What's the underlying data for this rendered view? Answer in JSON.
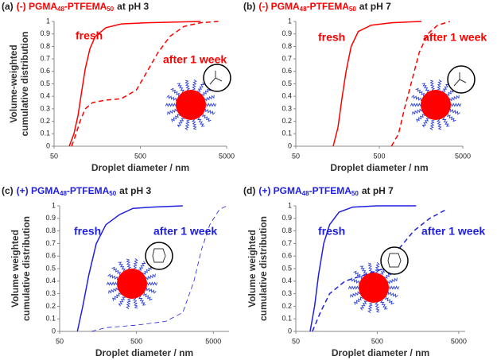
{
  "chart_data": [
    {
      "type": "line",
      "title": [
        "(a)",
        "(-) PGMA",
        "48",
        "-PTFEMA",
        "50",
        "at pH 3"
      ],
      "title_color": "#ff0000",
      "x_scale": "log",
      "xlim": [
        50,
        5000
      ],
      "xticks": [
        50,
        500,
        5000
      ],
      "ylim": [
        0,
        1
      ],
      "yticks": [
        0,
        0.1,
        0.2,
        0.3,
        0.4,
        0.5,
        0.6,
        0.7,
        0.8,
        0.9,
        1
      ],
      "xlabel": "Droplet diameter / nm",
      "ylabel": [
        "Volume-weighted",
        "cumulative distribution"
      ],
      "series": [
        {
          "name": "fresh",
          "color": "#ff0000",
          "dashed": false,
          "line_width": 1.5,
          "x": [
            75,
            85,
            95,
            105,
            115,
            130,
            150,
            200,
            300,
            600,
            2500
          ],
          "values": [
            0,
            0.1,
            0.25,
            0.45,
            0.62,
            0.78,
            0.88,
            0.95,
            0.98,
            0.99,
            1
          ]
        },
        {
          "name": "after 1 week",
          "color": "#ff0000",
          "dashed": true,
          "line_width": 1.5,
          "x": [
            80,
            90,
            100,
            115,
            140,
            200,
            300,
            450,
            600,
            800,
            1100,
            1600,
            2500,
            4000
          ],
          "values": [
            0,
            0.1,
            0.2,
            0.3,
            0.35,
            0.37,
            0.38,
            0.45,
            0.6,
            0.75,
            0.88,
            0.96,
            0.99,
            1
          ]
        }
      ]
    },
    {
      "type": "line",
      "title": [
        "(b)",
        "(-) PGMA",
        "48",
        "-PTFEMA",
        "50",
        "at pH 7"
      ],
      "title_color": "#ff0000",
      "x_scale": "log",
      "xlim": [
        50,
        5000
      ],
      "xticks": [
        50,
        500,
        5000
      ],
      "ylim": [
        0,
        1
      ],
      "yticks": [
        0,
        0.1,
        0.2,
        0.3,
        0.4,
        0.5,
        0.6,
        0.7,
        0.8,
        0.9,
        1
      ],
      "xlabel": "Droplet diameter / nm",
      "series": [
        {
          "name": "fresh",
          "color": "#ff0000",
          "dashed": false,
          "line_width": 1.5,
          "x": [
            140,
            160,
            180,
            200,
            230,
            280,
            400,
            700,
            1600
          ],
          "values": [
            0,
            0.15,
            0.4,
            0.6,
            0.8,
            0.92,
            0.97,
            0.99,
            1
          ]
        },
        {
          "name": "after 1 week",
          "color": "#ff0000",
          "dashed": true,
          "line_width": 1.5,
          "x": [
            700,
            850,
            1000,
            1200,
            1500,
            1900,
            2500,
            3500
          ],
          "values": [
            0,
            0.1,
            0.3,
            0.5,
            0.75,
            0.9,
            0.97,
            1
          ]
        }
      ]
    },
    {
      "type": "line",
      "title": [
        "(c)",
        "(+) PGMA",
        "48",
        "-PTFEMA",
        "50",
        "at pH 3"
      ],
      "title_color": "#1f1fe0",
      "x_scale": "log",
      "xlim": [
        50,
        8000
      ],
      "xticks": [
        50,
        500,
        5000
      ],
      "ylim": [
        0,
        1
      ],
      "yticks": [
        0,
        0.1,
        0.2,
        0.3,
        0.4,
        0.5,
        0.6,
        0.7,
        0.8,
        0.9,
        1
      ],
      "xlabel": "Droplet diameter / nm",
      "ylabel": [
        "Volume weighted",
        "cumulative distribution"
      ],
      "series": [
        {
          "name": "fresh",
          "color": "#1f1fe0",
          "dashed": false,
          "line_width": 1.5,
          "x": [
            85,
            100,
            120,
            150,
            200,
            300,
            450,
            800,
            2000
          ],
          "values": [
            0,
            0.2,
            0.45,
            0.7,
            0.85,
            0.93,
            0.98,
            0.99,
            1
          ]
        },
        {
          "name": "after 1 week",
          "color": "#1f1fe0",
          "dashed": true,
          "line_width": 0.8,
          "x": [
            130,
            200,
            500,
            1200,
            2000,
            2800,
            3500,
            4500,
            6000,
            7500
          ],
          "values": [
            0,
            0.03,
            0.05,
            0.08,
            0.15,
            0.4,
            0.65,
            0.85,
            0.97,
            1
          ]
        }
      ]
    },
    {
      "type": "line",
      "title": [
        "(d)",
        "(+) PGMA",
        "48",
        "-PTFEMA",
        "50",
        "at pH 7"
      ],
      "title_color": "#1f1fe0",
      "x_scale": "log",
      "xlim": [
        50,
        6000
      ],
      "xticks": [
        50,
        500,
        5000
      ],
      "ylim": [
        0,
        1
      ],
      "yticks": [
        0,
        0.1,
        0.2,
        0.3,
        0.4,
        0.5,
        0.6,
        0.7,
        0.8,
        0.9,
        1
      ],
      "xlabel": "Droplet diameter / nm",
      "ylabel": [
        "Volume weighted",
        "cumulative distribution"
      ],
      "series": [
        {
          "name": "fresh",
          "color": "#1f1fe0",
          "dashed": false,
          "line_width": 1.5,
          "x": [
            75,
            85,
            95,
            110,
            130,
            170,
            250,
            500,
            1500
          ],
          "values": [
            0,
            0.2,
            0.45,
            0.7,
            0.85,
            0.95,
            0.99,
            1,
            1
          ]
        },
        {
          "name": "after 1 week",
          "color": "#1f1fe0",
          "dashed": true,
          "line_width": 1.5,
          "x": [
            80,
            100,
            130,
            200,
            350,
            600,
            900,
            1400,
            2200,
            3500
          ],
          "values": [
            0,
            0.15,
            0.3,
            0.4,
            0.45,
            0.5,
            0.65,
            0.8,
            0.9,
            0.97
          ]
        }
      ]
    }
  ]
}
